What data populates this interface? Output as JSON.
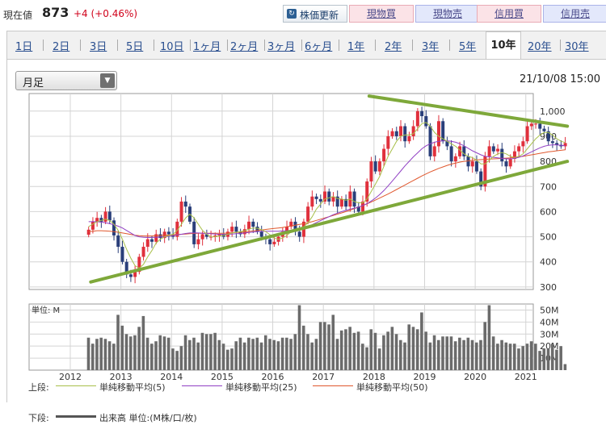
{
  "quote": {
    "label": "現在値",
    "price": "873",
    "change": "+4 (+0.46%)"
  },
  "toolbar": {
    "update_label": "株価更新",
    "buttons": [
      {
        "label": "現物買",
        "kind": "buy"
      },
      {
        "label": "現物売",
        "kind": "sell"
      },
      {
        "label": "信用買",
        "kind": "buy"
      },
      {
        "label": "信用売",
        "kind": "sell"
      }
    ]
  },
  "tabs": [
    "1日",
    "2日",
    "3日",
    "5日",
    "10日",
    "1ヶ月",
    "2ヶ月",
    "3ヶ月",
    "6ヶ月",
    "1年",
    "2年",
    "3年",
    "5年",
    "10年",
    "20年",
    "30年"
  ],
  "active_tab": "10年",
  "period_select": "月足",
  "datetime": "21/10/08 15:00",
  "colors": {
    "up": "#e0303c",
    "down": "#2a3f7a",
    "ma5": "#a8c04a",
    "ma25": "#9140c4",
    "ma50": "#e0582e",
    "trendline": "#7ea83a",
    "volume": "#6b6b6b"
  },
  "legend": {
    "upper_label": "上段:",
    "lower_label": "下段:",
    "ma5": "単純移動平均(5)",
    "ma25": "単純移動平均(25)",
    "ma50": "単純移動平均(50)",
    "volume": "出来高 単位:(M株/口/枚)"
  },
  "chart_data": {
    "type": "candlestick",
    "period": "monthly",
    "x_tick_labels": [
      "2012",
      "2013",
      "2014",
      "2015",
      "2016",
      "2017",
      "2018",
      "2019",
      "2020",
      "2021"
    ],
    "price_axis": {
      "ticks": [
        "300",
        "400",
        "500",
        "600",
        "700",
        "800",
        "900",
        "1,000"
      ],
      "ylim": [
        290,
        1070
      ]
    },
    "volume_axis": {
      "unit_label": "単位: M",
      "ticks": [
        "10M",
        "20M",
        "30M",
        "40M",
        "50M"
      ],
      "ylim": [
        0,
        55
      ]
    },
    "monthly_close": [
      528,
      560,
      575,
      560,
      600,
      565,
      505,
      460,
      400,
      350,
      340,
      360,
      420,
      460,
      490,
      480,
      510,
      495,
      520,
      510,
      500,
      560,
      640,
      620,
      560,
      470,
      490,
      510,
      500,
      500,
      505,
      510,
      500,
      520,
      540,
      520,
      510,
      530,
      560,
      540,
      520,
      500,
      490,
      470,
      480,
      500,
      520,
      540,
      560,
      520,
      500,
      560,
      620,
      660,
      650,
      640,
      680,
      640,
      660,
      620,
      650,
      620,
      680,
      620,
      600,
      640,
      720,
      800,
      760,
      800,
      850,
      900,
      920,
      900,
      940,
      880,
      900,
      940,
      1000,
      980,
      940,
      820,
      860,
      960,
      880,
      860,
      800,
      820,
      860,
      820,
      780,
      800,
      760,
      700,
      820,
      860,
      840,
      850,
      800,
      780,
      810,
      840,
      860,
      880,
      940,
      950,
      950,
      930,
      920,
      880,
      873,
      866,
      860,
      873
    ],
    "ma5": [
      540,
      550,
      560,
      565,
      570,
      565,
      550,
      525,
      490,
      450,
      415,
      385,
      375,
      390,
      420,
      445,
      475,
      490,
      500,
      505,
      510,
      525,
      550,
      575,
      590,
      575,
      550,
      525,
      510,
      500,
      500,
      503,
      505,
      510,
      515,
      518,
      520,
      524,
      530,
      535,
      534,
      528,
      520,
      508,
      494,
      490,
      495,
      505,
      520,
      530,
      535,
      540,
      555,
      580,
      610,
      630,
      650,
      655,
      660,
      652,
      650,
      645,
      650,
      640,
      635,
      635,
      650,
      680,
      710,
      740,
      780,
      820,
      850,
      880,
      900,
      905,
      905,
      910,
      930,
      950,
      955,
      940,
      915,
      900,
      890,
      880,
      870,
      860,
      845,
      830,
      820,
      815,
      805,
      790,
      790,
      805,
      820,
      830,
      835,
      830,
      820,
      815,
      820,
      830,
      850,
      870,
      890,
      905,
      915,
      915,
      905,
      890,
      880,
      875
    ],
    "ma25": [
      560,
      560,
      560,
      558,
      556,
      552,
      548,
      542,
      535,
      525,
      515,
      505,
      500,
      498,
      497,
      497,
      498,
      499,
      500,
      502,
      504,
      507,
      510,
      513,
      515,
      515,
      515,
      514,
      513,
      512,
      511,
      510,
      510,
      510,
      511,
      512,
      513,
      515,
      517,
      519,
      520,
      521,
      522,
      522,
      522,
      522,
      523,
      524,
      526,
      528,
      530,
      534,
      540,
      548,
      556,
      564,
      572,
      580,
      588,
      594,
      600,
      605,
      610,
      614,
      618,
      624,
      632,
      642,
      654,
      668,
      684,
      702,
      722,
      742,
      762,
      782,
      800,
      818,
      834,
      850,
      862,
      870,
      876,
      880,
      882,
      882,
      880,
      876,
      870,
      862,
      852,
      842,
      834,
      826,
      820,
      818,
      816,
      814,
      812,
      810,
      810,
      812,
      816,
      822,
      830,
      838,
      846,
      854,
      860,
      864,
      866,
      866,
      864,
      862
    ],
    "ma50": [
      520,
      522,
      524,
      524,
      523,
      522,
      520,
      518,
      515,
      512,
      509,
      506,
      504,
      503,
      503,
      503,
      504,
      505,
      506,
      507,
      508,
      509,
      510,
      511,
      512,
      513,
      514,
      514,
      514,
      514,
      514,
      514,
      514,
      515,
      516,
      517,
      518,
      519,
      521,
      523,
      525,
      527,
      529,
      531,
      533,
      535,
      537,
      540,
      543,
      546,
      549,
      552,
      556,
      560,
      565,
      570,
      575,
      580,
      585,
      590,
      595,
      600,
      606,
      612,
      618,
      624,
      631,
      638,
      646,
      654,
      662,
      670,
      679,
      688,
      697,
      706,
      715,
      724,
      733,
      742,
      750,
      758,
      765,
      772,
      778,
      784,
      789,
      793,
      797,
      800,
      802,
      804,
      806,
      807,
      808,
      809,
      810,
      811,
      812,
      813,
      814,
      816,
      818,
      820,
      823,
      826,
      829,
      832,
      835,
      838,
      840,
      842,
      844,
      846
    ],
    "volume": [
      27,
      22,
      26,
      27,
      26,
      24,
      22,
      46,
      37,
      30,
      28,
      29,
      36,
      45,
      27,
      22,
      24,
      29,
      28,
      27,
      18,
      16,
      20,
      29,
      25,
      27,
      23,
      31,
      30,
      30,
      31,
      25,
      22,
      17,
      18,
      24,
      27,
      23,
      27,
      26,
      27,
      23,
      29,
      26,
      25,
      24,
      27,
      27,
      26,
      30,
      54,
      37,
      30,
      23,
      26,
      40,
      40,
      38,
      46,
      26,
      33,
      34,
      36,
      31,
      32,
      22,
      19,
      34,
      31,
      18,
      29,
      32,
      36,
      30,
      25,
      23,
      38,
      36,
      34,
      48,
      32,
      23,
      29,
      25,
      28,
      28,
      28,
      24,
      27,
      25,
      27,
      25,
      23,
      25,
      40,
      54,
      28,
      22,
      25,
      23,
      22,
      22,
      18,
      20,
      22,
      24,
      22,
      16,
      18,
      18,
      22,
      17,
      20,
      5
    ],
    "trendlines": [
      {
        "name": "upper",
        "from": [
          "2018",
          1060
        ],
        "to": [
          "2021-12",
          940
        ]
      },
      {
        "name": "lower",
        "from": [
          "2012-07",
          320
        ],
        "to": [
          "2021-12",
          800
        ]
      }
    ],
    "legend_placement": "bottom",
    "grid": true
  }
}
